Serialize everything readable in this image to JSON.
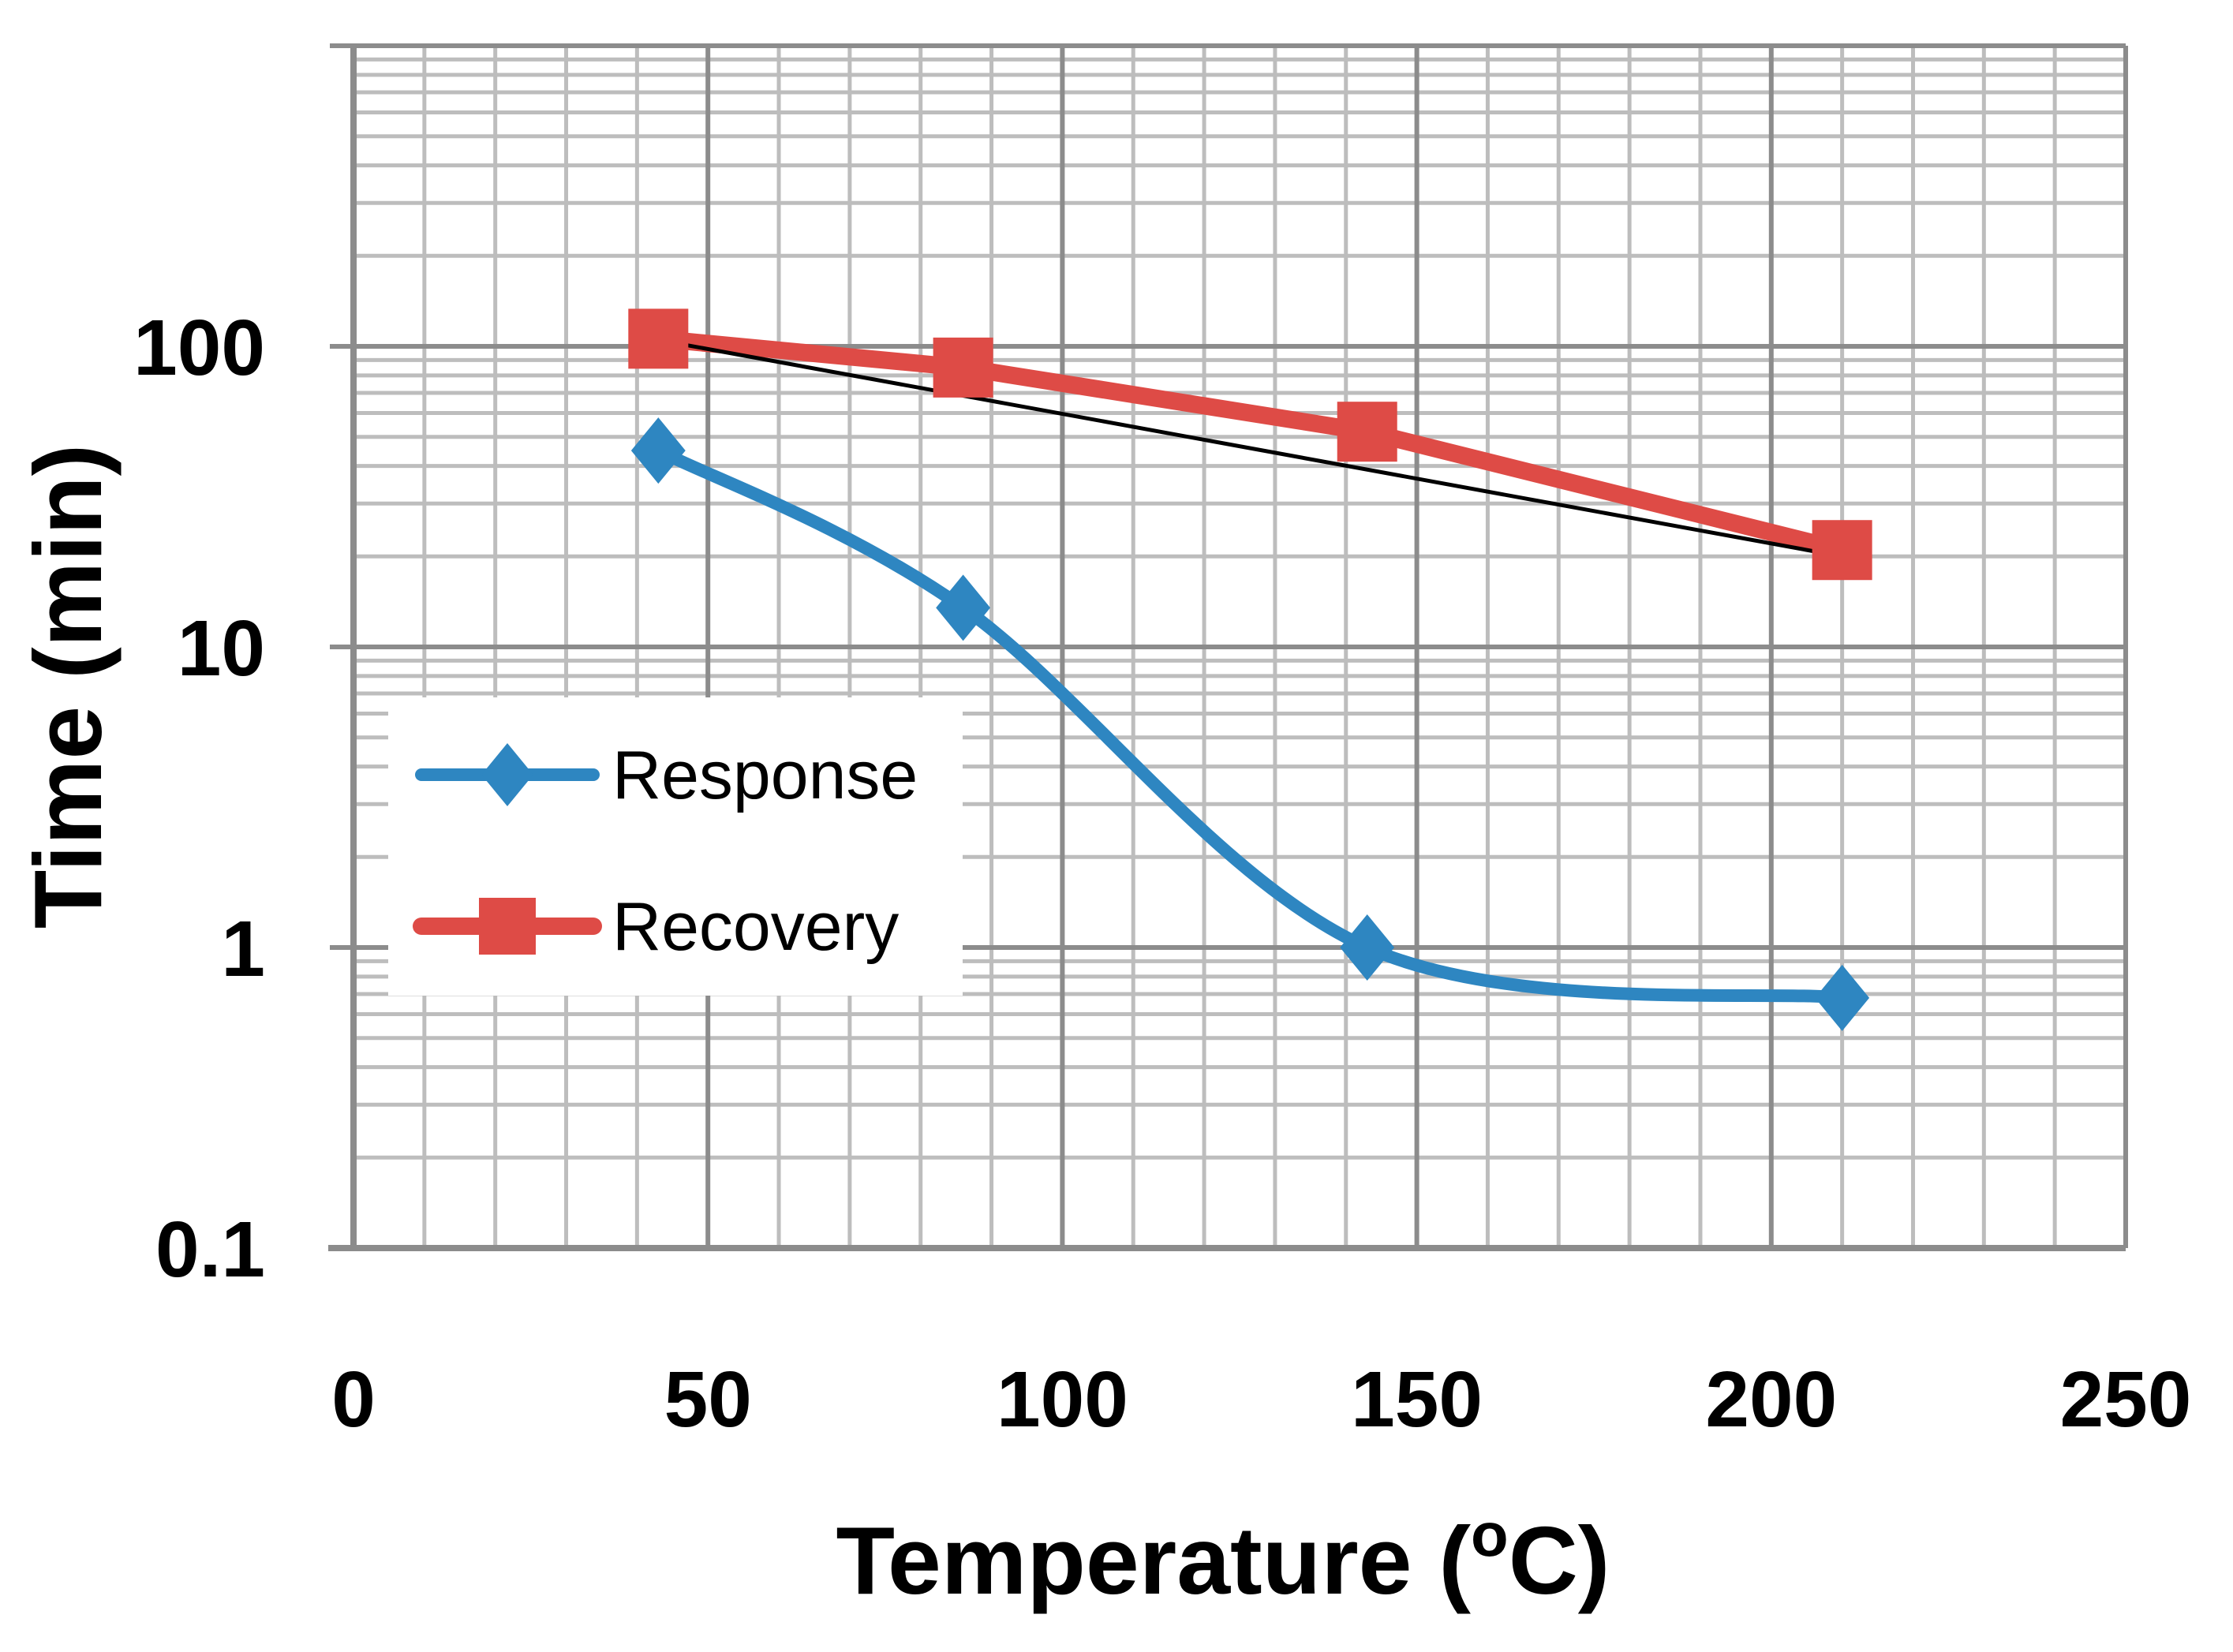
{
  "chart_data": {
    "type": "line",
    "x_axis": {
      "label": "Temperature",
      "label_symbol": "o",
      "label_unit": "C)",
      "label_prefix": "Temperature (",
      "min": 0,
      "max": 250,
      "major_step": 50,
      "minor_step": 10,
      "tick_labels": [
        "0",
        "50",
        "100",
        "150",
        "200",
        "250"
      ]
    },
    "y_axis": {
      "label": "Time (min)",
      "scale": "log",
      "min": 0.1,
      "max": 1000,
      "tick_values": [
        0.1,
        1,
        10,
        100
      ],
      "tick_labels": [
        "0.1",
        "1",
        "10",
        "100"
      ]
    },
    "grid": true,
    "legend": {
      "position": "left-middle",
      "entries": [
        "Response",
        "Recovery"
      ]
    },
    "series": [
      {
        "name": "Response",
        "color": "#2E86C1",
        "marker": "diamond",
        "smooth": true,
        "x": [
          43,
          86,
          143,
          210
        ],
        "y": [
          45,
          13.5,
          1.0,
          0.68
        ]
      },
      {
        "name": "Recovery",
        "color": "#DE4B46",
        "marker": "square",
        "smooth": false,
        "x": [
          43,
          86,
          143,
          210
        ],
        "y": [
          106,
          85,
          52,
          21
        ]
      }
    ],
    "trendline": {
      "color": "#000000",
      "x": [
        43,
        210
      ],
      "y": [
        105,
        20
      ]
    }
  }
}
